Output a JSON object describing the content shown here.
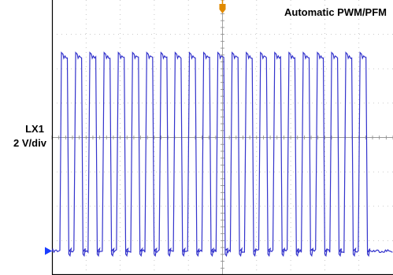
{
  "chart_data": {
    "type": "line",
    "title": "Automatic PWM/PFM",
    "channel": {
      "name": "LX1",
      "scale": "2 V/div"
    },
    "grid": true,
    "grid_divisions": {
      "horizontal": 10,
      "vertical": 8
    },
    "trace_color": "#3333cc",
    "marker_color": "#e08a00",
    "ground_marker_color": "#1a3dff",
    "pulse_count": 22,
    "pulse_period_div": 0.417,
    "high_level_div": 2.35,
    "low_level_div": -3.3,
    "overshoot_div": 0.12
  }
}
